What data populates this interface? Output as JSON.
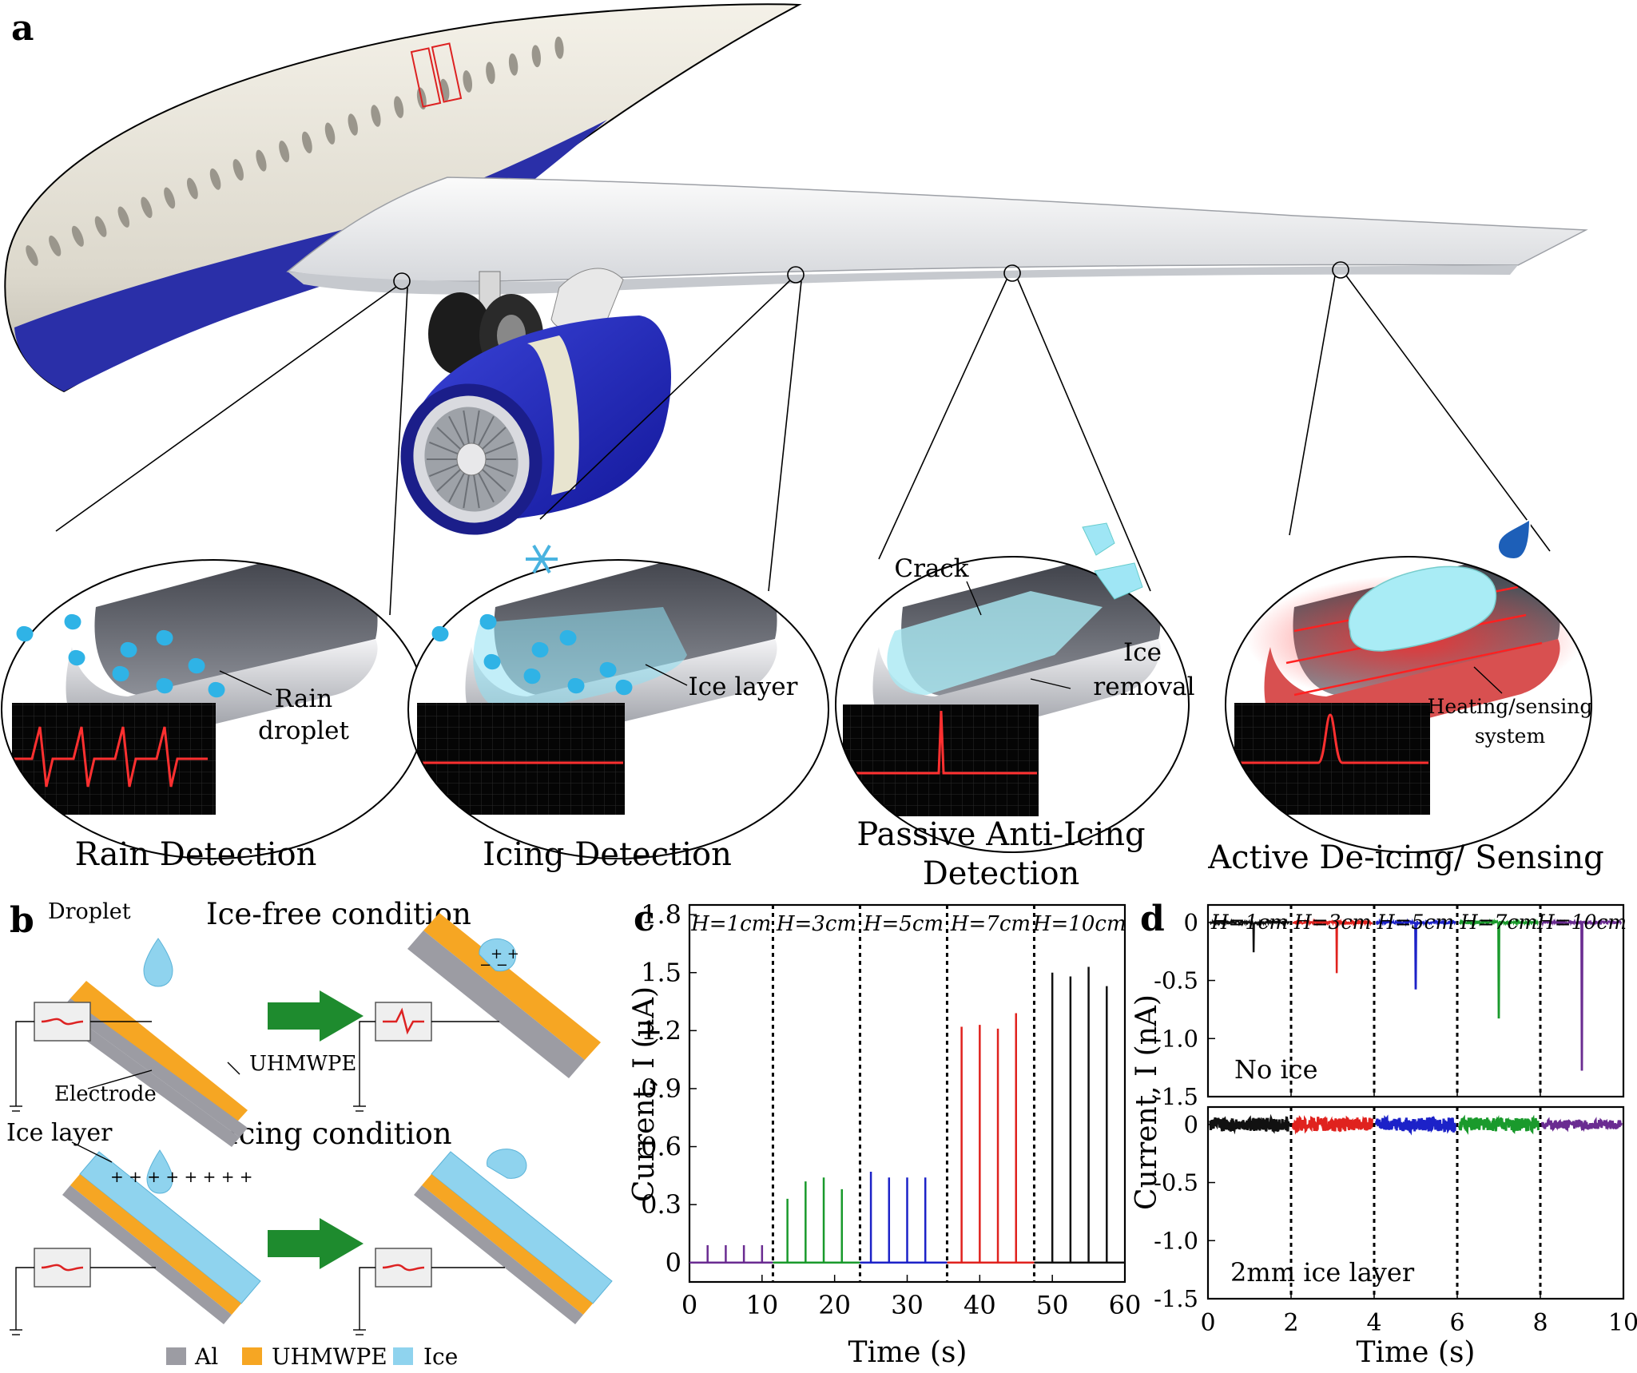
{
  "panel_a": {
    "letter": "a",
    "insets": [
      {
        "caption": "Rain Detection",
        "labels": [
          "Rain",
          "droplet"
        ]
      },
      {
        "caption": "Icing Detection",
        "labels": [
          "Ice layer"
        ]
      },
      {
        "caption_lines": [
          "Passive Anti-Icing",
          "Detection"
        ],
        "labels": [
          "Crack",
          "Ice",
          "removal"
        ]
      },
      {
        "caption": "Active De-icing/ Sensing",
        "labels": [
          "Heating/sensing",
          "system"
        ]
      }
    ]
  },
  "panel_b": {
    "letter": "b",
    "droplet_label": "Droplet",
    "ice_free_title": "Ice-free condition",
    "icing_title": "Icing condition",
    "ice_layer_label": "Ice layer",
    "electrode_label": "Electrode",
    "uhmwpe_label": "UHMWPE",
    "legend": [
      {
        "name": "Al",
        "color": "#9c9ca3"
      },
      {
        "name": "UHMWPE",
        "color": "#f6a623"
      },
      {
        "name": "Ice",
        "color": "#8fd3ee"
      }
    ]
  },
  "colors": {
    "fuselage_blue": "#2a2fa8",
    "series": [
      "#6a2c91",
      "#1a9a2c",
      "#1c22c8",
      "#e0221e",
      "#111111"
    ]
  },
  "chart_data": [
    {
      "panel": "c",
      "type": "line",
      "xlabel": "Time (s)",
      "ylabel": "Current, I (μA)",
      "xlim": [
        0,
        60
      ],
      "ylim": [
        -0.1,
        1.85
      ],
      "xticks": [
        "0",
        "10",
        "20",
        "30",
        "40",
        "50",
        "60"
      ],
      "yticks": [
        "0",
        "0.3",
        "0.6",
        "0.9",
        "1.2",
        "1.5",
        "1.8"
      ],
      "dividers": [
        11.5,
        23.5,
        35.5,
        47.5
      ],
      "series": [
        {
          "name": "H=1cm",
          "x": [
            2.5,
            5,
            7.5,
            10
          ],
          "values": [
            0.09,
            0.09,
            0.09,
            0.09
          ]
        },
        {
          "name": "H=3cm",
          "x": [
            13.5,
            16,
            18.5,
            21
          ],
          "values": [
            0.33,
            0.42,
            0.44,
            0.38
          ]
        },
        {
          "name": "H=5cm",
          "x": [
            25,
            27.5,
            30,
            32.5
          ],
          "values": [
            0.47,
            0.44,
            0.44,
            0.44
          ]
        },
        {
          "name": "H=7cm",
          "x": [
            37.5,
            40,
            42.5,
            45
          ],
          "values": [
            1.22,
            1.23,
            1.21,
            1.29
          ]
        },
        {
          "name": "H=10cm",
          "x": [
            50,
            52.5,
            55,
            57.5
          ],
          "values": [
            1.5,
            1.48,
            1.53,
            1.43
          ]
        }
      ]
    },
    {
      "panel": "d",
      "type": "line",
      "xlabel": "Time (s)",
      "ylabel": "Current, I (nA)",
      "xlim": [
        0,
        10
      ],
      "xticks": [
        "0",
        "2",
        "4",
        "6",
        "8",
        "10"
      ],
      "subplots": [
        {
          "annotation": "No ice",
          "ylim": [
            -1.5,
            0.15
          ],
          "yticks": [
            "0",
            "-0.5",
            "-1.0",
            "-1.5"
          ],
          "dividers": [
            2,
            4,
            6,
            8
          ],
          "series": [
            {
              "name": "H=1cm",
              "spike_x": 1.1,
              "spike_y": -0.25
            },
            {
              "name": "H=3cm",
              "spike_x": 3.1,
              "spike_y": -0.43
            },
            {
              "name": "H=5cm",
              "spike_x": 5.0,
              "spike_y": -0.57
            },
            {
              "name": "H=7cm",
              "spike_x": 7.0,
              "spike_y": -0.82
            },
            {
              "name": "H=10cm",
              "spike_x": 9.0,
              "spike_y": -1.27
            }
          ]
        },
        {
          "annotation": "2mm ice layer",
          "ylim": [
            -1.5,
            0.15
          ],
          "yticks": [
            "0",
            "-0.5",
            "-1.0",
            "-1.5"
          ],
          "dividers": [
            2,
            4,
            6,
            8
          ],
          "series": [
            {
              "name": "H=1cm",
              "noise_amplitude": 0.06
            },
            {
              "name": "H=3cm",
              "noise_amplitude": 0.06
            },
            {
              "name": "H=5cm",
              "noise_amplitude": 0.06
            },
            {
              "name": "H=7cm",
              "noise_amplitude": 0.06
            },
            {
              "name": "H=10cm",
              "noise_amplitude": 0.04
            }
          ]
        }
      ]
    }
  ]
}
